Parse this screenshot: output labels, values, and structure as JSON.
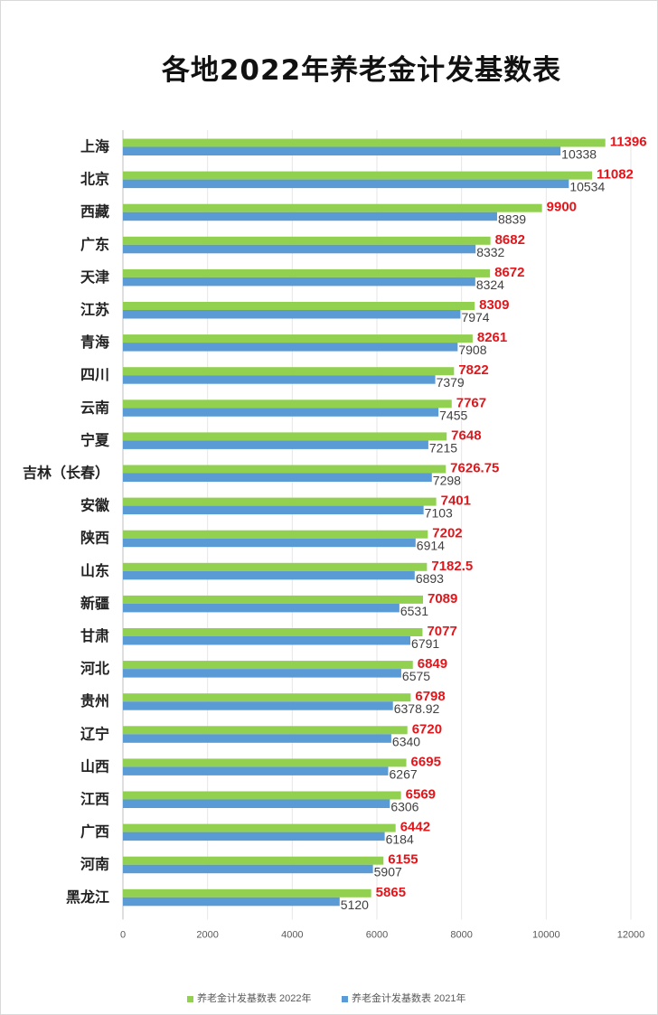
{
  "chart_data": {
    "type": "bar",
    "orientation": "horizontal",
    "title": "各地2022年养老金计发基数表",
    "categories": [
      "上海",
      "北京",
      "西藏",
      "广东",
      "天津",
      "江苏",
      "青海",
      "四川",
      "云南",
      "宁夏",
      "吉林（长春）",
      "安徽",
      "陕西",
      "山东",
      "新疆",
      "甘肃",
      "河北",
      "贵州",
      "辽宁",
      "山西",
      "江西",
      "广西",
      "河南",
      "黑龙江"
    ],
    "series": [
      {
        "name": "养老金计发基数表 2022年",
        "color": "#92d050",
        "label_color": "#e0161b",
        "values": [
          11396,
          11082,
          9900,
          8682,
          8672,
          8309,
          8261,
          7822,
          7767,
          7648,
          7626.75,
          7401,
          7202,
          7182.5,
          7089,
          7077,
          6849,
          6798,
          6720,
          6695,
          6569,
          6442,
          6155,
          5865
        ]
      },
      {
        "name": "养老金计发基数表 2021年",
        "color": "#5b9bd5",
        "label_color": "#404040",
        "values": [
          10338,
          10534,
          8839,
          8332,
          8324,
          7974,
          7908,
          7379,
          7455,
          7215,
          7298,
          7103,
          6914,
          6893,
          6531,
          6791,
          6575,
          6378.92,
          6340,
          6267,
          6306,
          6184,
          5907,
          5120
        ]
      }
    ],
    "xlim": [
      0,
      12000
    ],
    "xticks": [
      0,
      2000,
      4000,
      6000,
      8000,
      10000,
      12000
    ],
    "grid": true,
    "legend_position": "bottom"
  }
}
